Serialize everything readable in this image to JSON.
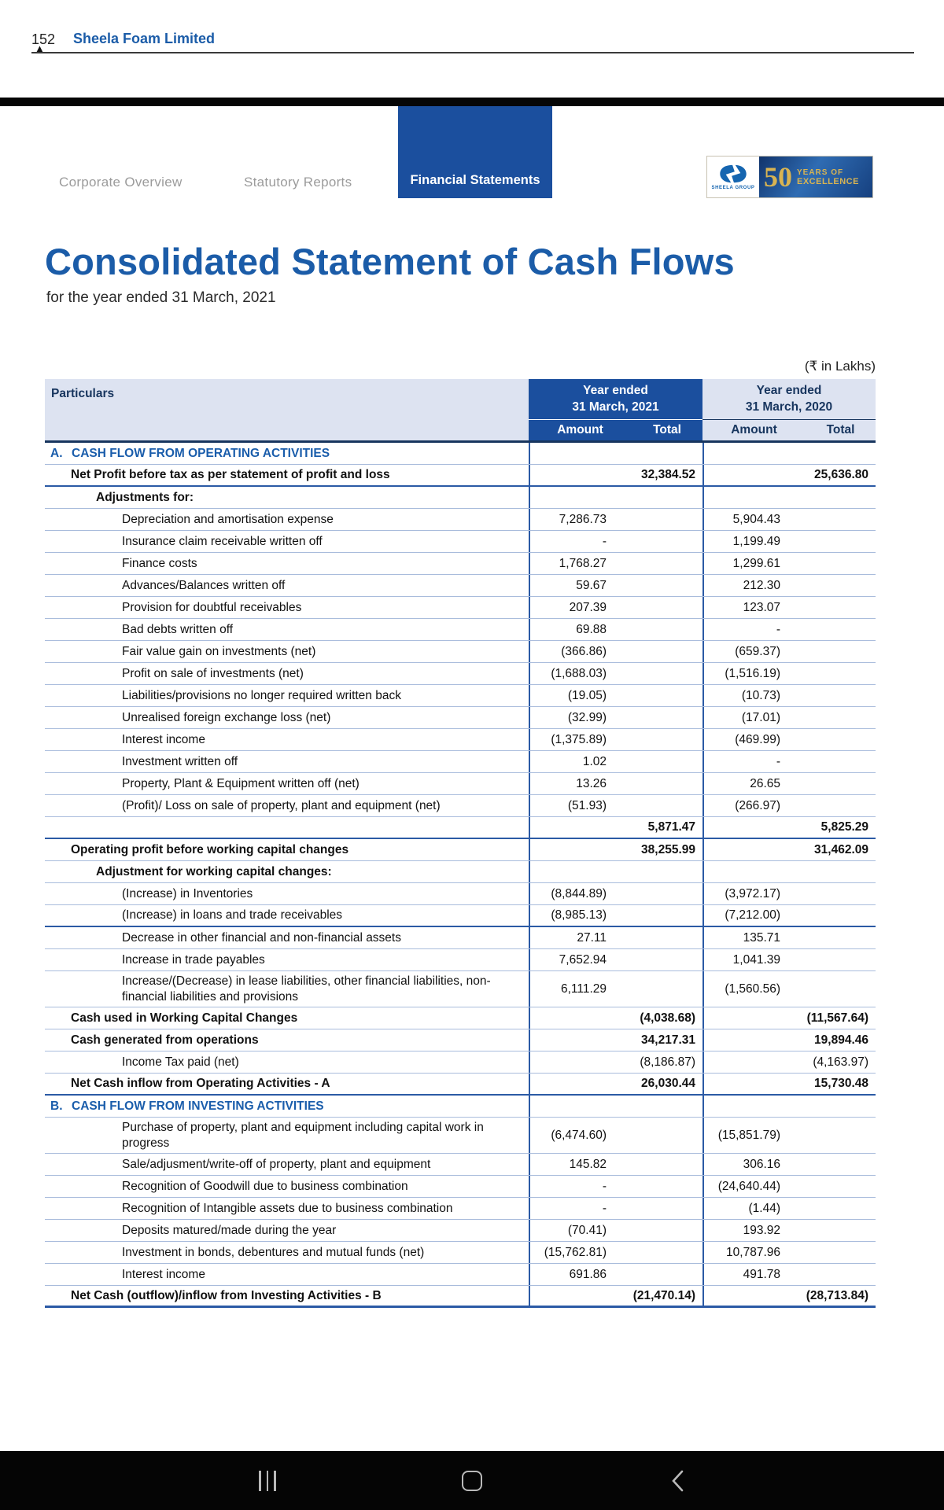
{
  "page_header": {
    "page_number": "152",
    "company": "Sheela Foam Limited"
  },
  "tabs": [
    {
      "label": "Corporate Overview",
      "active": false
    },
    {
      "label": "Statutory Reports",
      "active": false
    },
    {
      "label": "Financial Statements",
      "active": true
    }
  ],
  "logo": {
    "group_name": "SHEELA GROUP",
    "years": "50",
    "line1": "YEARS OF",
    "line2": "EXCELLENCE"
  },
  "title": "Consolidated Statement of Cash Flows",
  "subtitle": "for the year ended 31 March, 2021",
  "table": {
    "unit_note": "(₹ in Lakhs)",
    "header": {
      "particulars": "Particulars",
      "y2021_line1": "Year ended",
      "y2021_line2": "31 March, 2021",
      "y2020_line1": "Year ended",
      "y2020_line2": "31 March, 2020",
      "amount": "Amount",
      "total": "Total"
    },
    "rows": [
      {
        "letter": "A.",
        "label": "CASH FLOW FROM OPERATING ACTIVITIES",
        "section": true
      },
      {
        "label": "Net Profit before tax as per statement of profit and loss",
        "indent": 1,
        "bold": true,
        "t21": "32,384.52",
        "t20": "25,636.80",
        "strong": true
      },
      {
        "label": "Adjustments for:",
        "indent": 2,
        "bold": true
      },
      {
        "label": "Depreciation and amortisation expense",
        "indent": 3,
        "a21": "7,286.73",
        "a20": "5,904.43"
      },
      {
        "label": "Insurance claim receivable written off",
        "indent": 3,
        "a21": "-",
        "a20": "1,199.49"
      },
      {
        "label": "Finance costs",
        "indent": 3,
        "a21": "1,768.27",
        "a20": "1,299.61"
      },
      {
        "label": "Advances/Balances written off",
        "indent": 3,
        "a21": "59.67",
        "a20": "212.30"
      },
      {
        "label": "Provision for doubtful receivables",
        "indent": 3,
        "a21": "207.39",
        "a20": "123.07"
      },
      {
        "label": "Bad debts written off",
        "indent": 3,
        "a21": "69.88",
        "a20": "-"
      },
      {
        "label": "Fair value gain on investments (net)",
        "indent": 3,
        "a21": "(366.86)",
        "a20": "(659.37)"
      },
      {
        "label": "Profit on sale of investments (net)",
        "indent": 3,
        "a21": "(1,688.03)",
        "a20": "(1,516.19)"
      },
      {
        "label": "Liabilities/provisions no longer required written back",
        "indent": 3,
        "a21": "(19.05)",
        "a20": "(10.73)"
      },
      {
        "label": "Unrealised foreign exchange loss (net)",
        "indent": 3,
        "a21": "(32.99)",
        "a20": "(17.01)"
      },
      {
        "label": "Interest income",
        "indent": 3,
        "a21": "(1,375.89)",
        "a20": "(469.99)"
      },
      {
        "label": "Investment written off",
        "indent": 3,
        "a21": "1.02",
        "a20": "-"
      },
      {
        "label": "Property, Plant & Equipment written off (net)",
        "indent": 3,
        "a21": "13.26",
        "a20": "26.65"
      },
      {
        "label": "(Profit)/ Loss on sale of property, plant and equipment (net)",
        "indent": 3,
        "a21": "(51.93)",
        "a20": "(266.97)"
      },
      {
        "label": "",
        "indent": 1,
        "bold": true,
        "t21": "5,871.47",
        "t20": "5,825.29",
        "strong": true
      },
      {
        "label": "Operating profit before working capital changes",
        "indent": 1,
        "bold": true,
        "t21": "38,255.99",
        "t20": "31,462.09"
      },
      {
        "label": "Adjustment for working capital changes:",
        "indent": 2,
        "bold": true
      },
      {
        "label": "(Increase) in Inventories",
        "indent": 3,
        "a21": "(8,844.89)",
        "a20": "(3,972.17)"
      },
      {
        "label": "(Increase) in loans and trade receivables",
        "indent": 3,
        "a21": "(8,985.13)",
        "a20": "(7,212.00)",
        "strong": true
      },
      {
        "label": "Decrease in other financial and non-financial assets",
        "indent": 3,
        "a21": "27.11",
        "a20": "135.71"
      },
      {
        "label": "Increase in trade payables",
        "indent": 3,
        "a21": "7,652.94",
        "a20": "1,041.39"
      },
      {
        "label": "Increase/(Decrease) in lease liabilities, other financial liabilities, non-financial liabilities and provisions",
        "indent": 3,
        "tall": true,
        "a21": "6,111.29",
        "a20": "(1,560.56)"
      },
      {
        "label": "Cash used in Working Capital Changes",
        "indent": 1,
        "bold": true,
        "t21": "(4,038.68)",
        "t20": "(11,567.64)"
      },
      {
        "label": "Cash generated from operations",
        "indent": 1,
        "bold": true,
        "t21": "34,217.31",
        "t20": "19,894.46"
      },
      {
        "label": "Income Tax paid (net)",
        "indent": 3,
        "t21": "(8,186.87)",
        "t20": "(4,163.97)"
      },
      {
        "label": "Net Cash inflow from Operating Activities  - A",
        "indent": 1,
        "bold": true,
        "t21": "26,030.44",
        "t20": "15,730.48",
        "strong": true
      },
      {
        "letter": "B.",
        "label": "CASH FLOW FROM INVESTING ACTIVITIES",
        "section": true
      },
      {
        "label": "Purchase of property, plant and equipment including capital work in progress",
        "indent": 3,
        "tall": true,
        "a21": "(6,474.60)",
        "a20": "(15,851.79)"
      },
      {
        "label": "Sale/adjusment/write-off of property, plant and equipment",
        "indent": 3,
        "a21": "145.82",
        "a20": "306.16"
      },
      {
        "label": "Recognition of Goodwill due to business combination",
        "indent": 3,
        "a21": "-",
        "a20": "(24,640.44)"
      },
      {
        "label": "Recognition of Intangible assets due to business combination",
        "indent": 3,
        "a21": "-",
        "a20": "(1.44)"
      },
      {
        "label": "Deposits matured/made during the year",
        "indent": 3,
        "a21": "(70.41)",
        "a20": "193.92"
      },
      {
        "label": "Investment in bonds, debentures and mutual funds (net)",
        "indent": 3,
        "a21": "(15,762.81)",
        "a20": "10,787.96"
      },
      {
        "label": "Interest income",
        "indent": 3,
        "a21": "691.86",
        "a20": "491.78"
      },
      {
        "label": "Net Cash (outflow)/inflow from Investing Activities - B",
        "indent": 1,
        "bold": true,
        "t21": "(21,470.14)",
        "t20": "(28,713.84)",
        "last": true
      }
    ]
  },
  "colors": {
    "accent_blue": "#1b5ca8",
    "header_blue": "#1b4f9e",
    "header_light": "#dde3f1",
    "gold": "#d9b452"
  },
  "android_nav": {
    "recents": "recents-icon",
    "home": "home-icon",
    "back": "back-icon"
  }
}
